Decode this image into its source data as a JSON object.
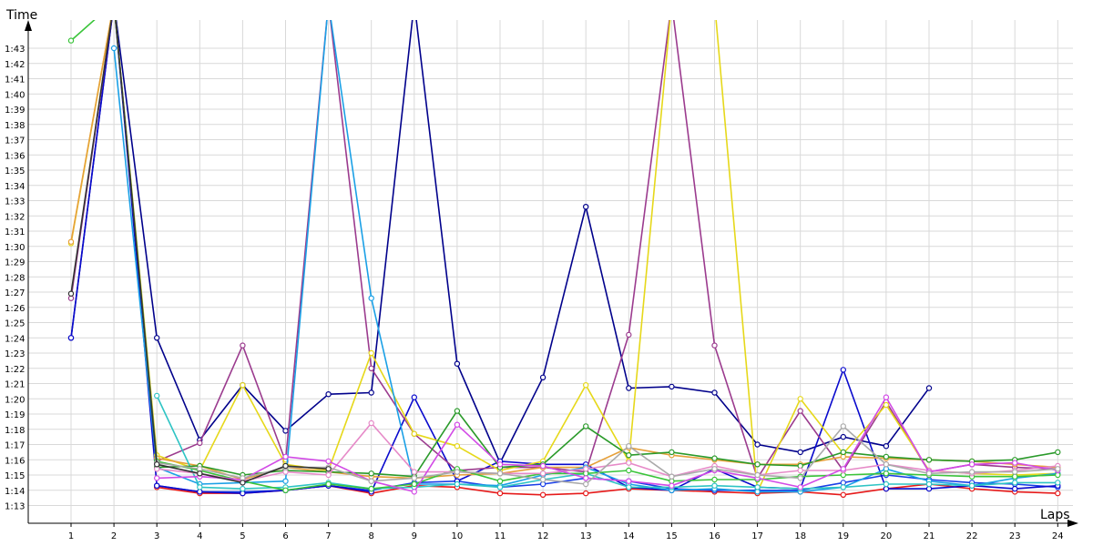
{
  "chart_data": {
    "type": "line",
    "xlabel": "Laps",
    "ylabel": "Time",
    "x": [
      1,
      2,
      3,
      4,
      5,
      6,
      7,
      8,
      9,
      10,
      11,
      12,
      13,
      14,
      15,
      16,
      17,
      18,
      19,
      20,
      21,
      22,
      23,
      24
    ],
    "x_tick_labels": [
      "1",
      "2",
      "3",
      "4",
      "5",
      "6",
      "7",
      "8",
      "9",
      "10",
      "11",
      "12",
      "13",
      "14",
      "15",
      "16",
      "17",
      "18",
      "19",
      "20",
      "21",
      "22",
      "23",
      "24"
    ],
    "y_tick_labels": [
      "1:13",
      "1:14",
      "1:15",
      "1:16",
      "1:17",
      "1:18",
      "1:19",
      "1:20",
      "1:21",
      "1:22",
      "1:23",
      "1:24",
      "1:25",
      "1:26",
      "1:27",
      "1:28",
      "1:29",
      "1:30",
      "1:31",
      "1:32",
      "1:33",
      "1:34",
      "1:35",
      "1:36",
      "1:37",
      "1:38",
      "1:39",
      "1:40",
      "1:41",
      "1:42",
      "1:43"
    ],
    "y_tick_seconds": [
      73,
      74,
      75,
      76,
      77,
      78,
      79,
      80,
      81,
      82,
      83,
      84,
      85,
      86,
      87,
      88,
      89,
      90,
      91,
      92,
      93,
      94,
      95,
      96,
      97,
      98,
      99,
      100,
      101,
      102,
      103
    ],
    "ylim": [
      72,
      105
    ],
    "grid": true,
    "legend": "none",
    "series": [
      {
        "color": "#e61a1a",
        "values": [
          null,
          null,
          74.2,
          73.8,
          73.8,
          74.0,
          74.3,
          73.8,
          74.3,
          74.2,
          73.8,
          73.7,
          73.8,
          74.1,
          74.0,
          73.9,
          73.8,
          73.9,
          73.7,
          74.1,
          74.4,
          74.1,
          73.9,
          73.8
        ]
      },
      {
        "color": "#1a3fe6",
        "values": [
          null,
          null,
          74.3,
          73.9,
          73.9,
          74.0,
          74.3,
          74.0,
          74.5,
          74.6,
          74.2,
          74.4,
          74.8,
          74.6,
          74.1,
          74.0,
          74.0,
          74.0,
          74.5,
          75.0,
          74.7,
          74.5,
          74.4,
          74.2
        ]
      },
      {
        "color": "#00008b",
        "values": [
          84.0,
          106,
          84.0,
          77.3,
          80.9,
          77.9,
          80.3,
          80.4,
          106,
          82.3,
          75.8,
          81.4,
          92.6,
          80.7,
          80.8,
          80.4,
          77.0,
          76.5,
          77.5,
          76.9,
          80.7,
          null,
          null,
          null
        ]
      },
      {
        "color": "#0a0acd",
        "values": [
          84.0,
          106,
          74.3,
          73.9,
          73.8,
          74.0,
          74.3,
          73.9,
          80.1,
          74.6,
          75.9,
          75.7,
          75.7,
          74.2,
          74.0,
          75.4,
          74.2,
          74.1,
          81.9,
          74.1,
          74.1,
          74.3,
          74.1,
          74.3
        ]
      },
      {
        "color": "#9b3b8e",
        "values": [
          86.6,
          106,
          75.9,
          77.1,
          83.5,
          75.9,
          106,
          82.0,
          77.7,
          75.3,
          75.5,
          75.5,
          75.2,
          84.2,
          106,
          83.5,
          74.8,
          79.2,
          75.3,
          79.8,
          75.2,
          75.7,
          75.5,
          75.4
        ]
      },
      {
        "color": "#e6d81a",
        "values": [
          90.2,
          106,
          76.3,
          75.3,
          80.9,
          75.7,
          75.3,
          83.0,
          77.7,
          76.9,
          75.3,
          75.9,
          80.9,
          75.9,
          106,
          106,
          73.9,
          80.0,
          76.4,
          79.6,
          75.3,
          75.1,
          75.0,
          75.1
        ]
      },
      {
        "color": "#e6a03a",
        "values": [
          90.3,
          106,
          76.1,
          75.6,
          74.7,
          75.5,
          75.2,
          74.9,
          74.8,
          75.0,
          75.1,
          75.5,
          75.5,
          76.8,
          76.3,
          76.0,
          75.7,
          75.7,
          76.2,
          76.1,
          76.0,
          75.9,
          75.7,
          75.5
        ]
      },
      {
        "color": "#1aa0e6",
        "values": [
          null,
          103.0,
          75.5,
          74.4,
          74.5,
          74.6,
          106,
          86.6,
          74.4,
          74.4,
          74.3,
          75.0,
          75.5,
          74.4,
          74.0,
          74.1,
          73.9,
          73.9,
          74.2,
          75.4,
          74.6,
          74.3,
          74.8,
          75.1
        ]
      },
      {
        "color": "#2ec4c4",
        "values": [
          null,
          null,
          80.2,
          74.2,
          74.1,
          74.2,
          74.5,
          74.1,
          74.2,
          74.4,
          74.2,
          74.7,
          75.1,
          74.2,
          74.2,
          74.3,
          74.2,
          74.1,
          74.2,
          74.4,
          74.4,
          74.3,
          74.5,
          74.5
        ]
      },
      {
        "color": "#2a9a2a",
        "values": [
          null,
          null,
          75.5,
          75.6,
          75.0,
          75.3,
          75.2,
          75.1,
          74.9,
          79.2,
          75.5,
          75.7,
          78.2,
          76.3,
          76.5,
          76.1,
          75.7,
          75.6,
          76.5,
          76.2,
          76.0,
          75.9,
          76.0,
          76.5
        ]
      },
      {
        "color": "#3ac43a",
        "values": [
          103.5,
          106,
          75.9,
          75.3,
          74.6,
          74.0,
          74.4,
          74.1,
          74.4,
          75.4,
          74.6,
          75.1,
          75.1,
          75.3,
          74.6,
          74.7,
          74.7,
          74.9,
          75.0,
          75.1,
          75.0,
          74.9,
          74.9,
          75.0
        ]
      },
      {
        "color": "#e68ac8",
        "values": [
          null,
          null,
          75.4,
          75.1,
          74.6,
          75.2,
          75.0,
          78.4,
          75.2,
          75.2,
          75.1,
          75.1,
          75.4,
          75.8,
          74.9,
          75.6,
          75.0,
          75.3,
          75.3,
          75.7,
          75.3,
          75.1,
          75.3,
          75.6
        ]
      },
      {
        "color": "#d24ae6",
        "values": [
          null,
          null,
          74.8,
          74.9,
          74.7,
          76.2,
          75.9,
          74.6,
          73.9,
          78.3,
          75.7,
          75.6,
          74.8,
          74.6,
          74.3,
          75.3,
          74.8,
          74.2,
          75.4,
          80.1,
          75.2,
          75.7,
          75.8,
          75.3
        ]
      },
      {
        "color": "#aaaaaa",
        "values": [
          null,
          null,
          75.8,
          75.4,
          74.8,
          75.5,
          75.5,
          74.6,
          74.8,
          75.2,
          75.1,
          74.7,
          74.4,
          76.9,
          74.9,
          75.4,
          75.0,
          74.8,
          78.2,
          75.7,
          75.1,
          75.2,
          75.2,
          75.4
        ]
      },
      {
        "color": "#333333",
        "values": [
          86.9,
          106,
          75.7,
          75.1,
          74.5,
          75.6,
          75.4,
          null,
          null,
          null,
          null,
          null,
          null,
          null,
          null,
          null,
          null,
          null,
          null,
          null,
          null,
          null,
          null,
          null
        ]
      }
    ]
  }
}
